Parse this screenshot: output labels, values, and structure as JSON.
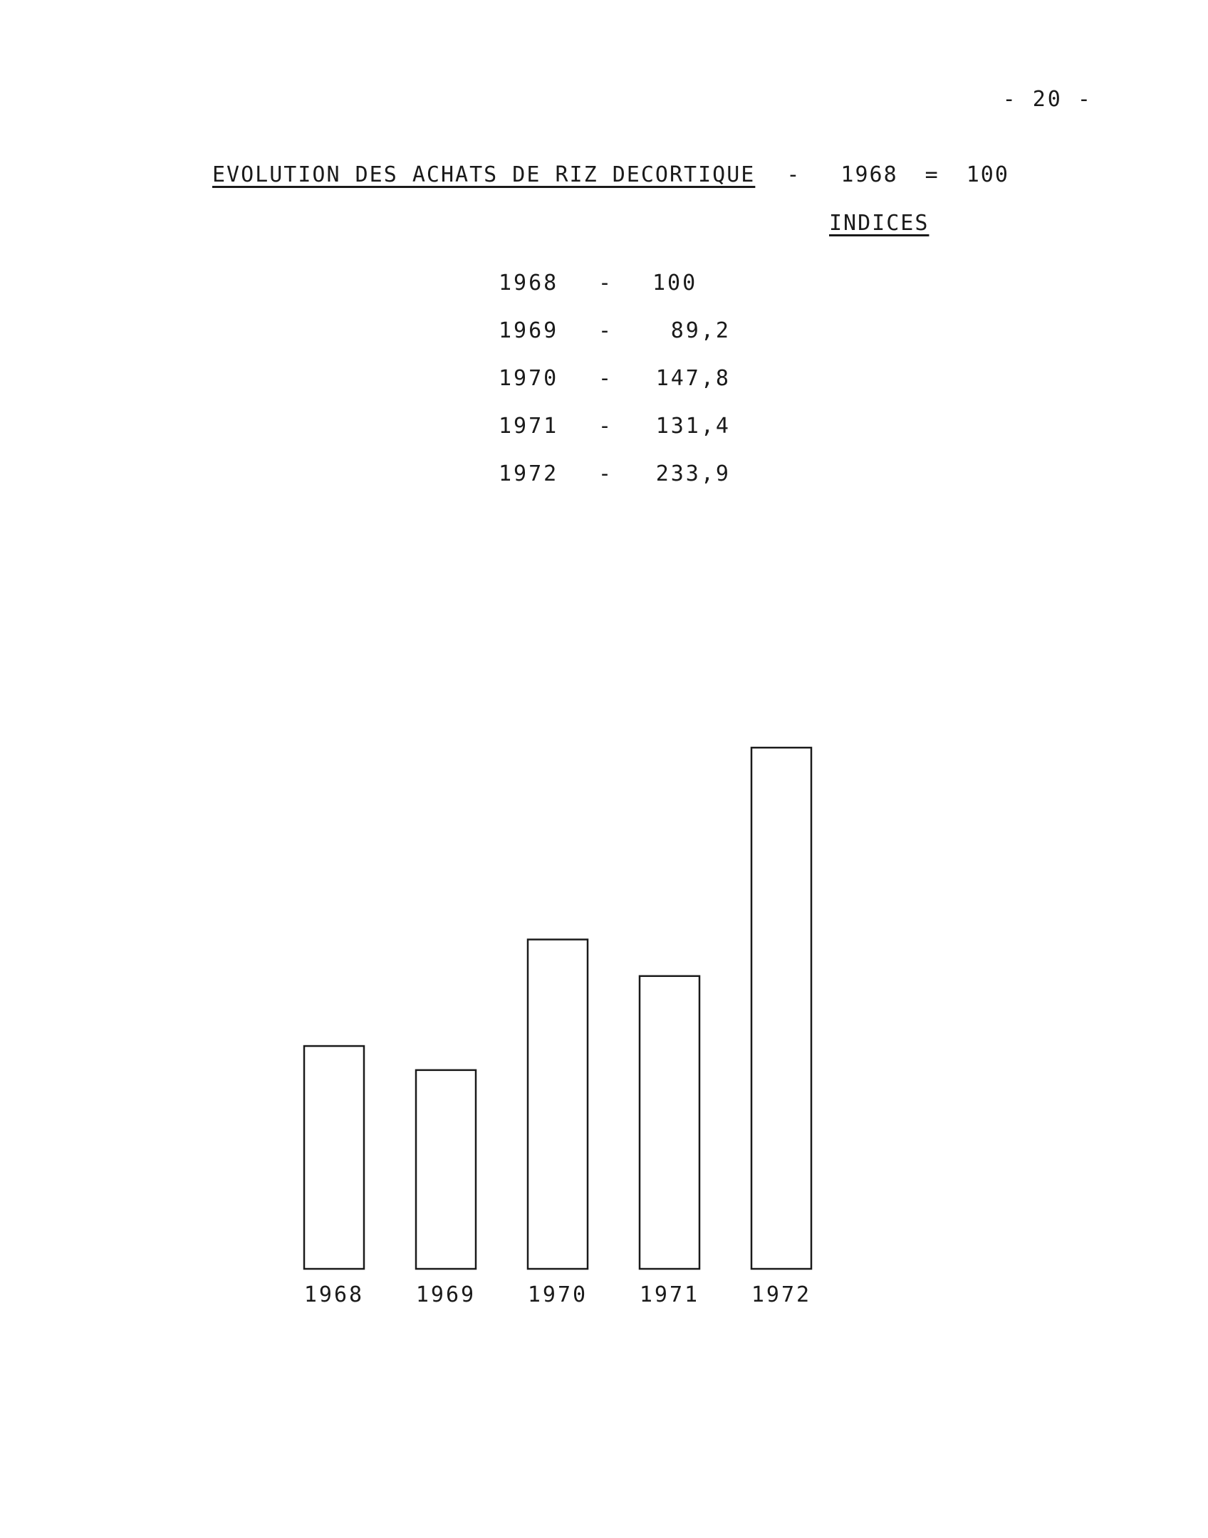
{
  "page": {
    "number": "- 20 -"
  },
  "header": {
    "title": "EVOLUTION DES ACHATS DE RIZ DECORTIQUE",
    "separator": "-",
    "base_year": "1968",
    "equals": "=",
    "base_value": "100",
    "indices_label": "INDICES"
  },
  "index_table": {
    "rows": [
      {
        "year": "1968",
        "dash": "-",
        "value": "100"
      },
      {
        "year": "1969",
        "dash": "-",
        "value": "89,2"
      },
      {
        "year": "1970",
        "dash": "-",
        "value": "147,8"
      },
      {
        "year": "1971",
        "dash": "-",
        "value": "131,4"
      },
      {
        "year": "1972",
        "dash": "-",
        "value": "233,9"
      }
    ]
  },
  "chart_data": {
    "type": "bar",
    "categories": [
      "1968",
      "1969",
      "1970",
      "1971",
      "1972"
    ],
    "values": [
      100,
      89.2,
      147.8,
      131.4,
      233.9
    ],
    "title": "",
    "xlabel": "",
    "ylabel": "",
    "ylim": [
      0,
      233.9
    ],
    "grid": false,
    "legend": "none",
    "bar_fill": "#ffffff",
    "bar_stroke": "#1a1a1a"
  }
}
